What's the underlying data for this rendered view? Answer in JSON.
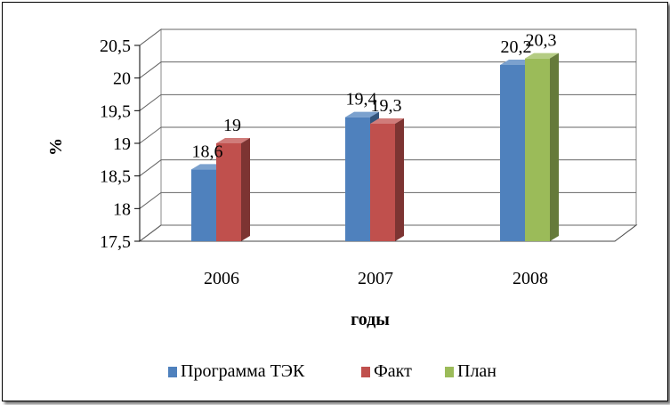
{
  "chart_data": {
    "type": "bar",
    "categories": [
      "2006",
      "2007",
      "2008"
    ],
    "series": [
      {
        "name": "Программа ТЭК",
        "values": [
          18.6,
          19.4,
          20.2
        ],
        "labels": [
          "18,6",
          "19,4",
          "20,2"
        ],
        "color": "#4f81bd"
      },
      {
        "name": "Факт",
        "values": [
          19,
          19.3,
          null
        ],
        "labels": [
          "19",
          "19,3",
          ""
        ],
        "color": "#c0504d"
      },
      {
        "name": "План",
        "values": [
          null,
          null,
          20.3
        ],
        "labels": [
          "",
          "",
          "20,3"
        ],
        "color": "#9bbb59"
      }
    ],
    "title": "",
    "xlabel": "годы",
    "ylabel": "%",
    "ylim": [
      17.5,
      20.5
    ],
    "yticks": [
      17.5,
      18,
      18.5,
      19,
      19.5,
      20,
      20.5
    ],
    "ytick_labels": [
      "17,5",
      "18",
      "18,5",
      "19",
      "19,5",
      "20",
      "20,5"
    ],
    "grid": true,
    "legend": "bottom",
    "style": "3d-columns"
  }
}
